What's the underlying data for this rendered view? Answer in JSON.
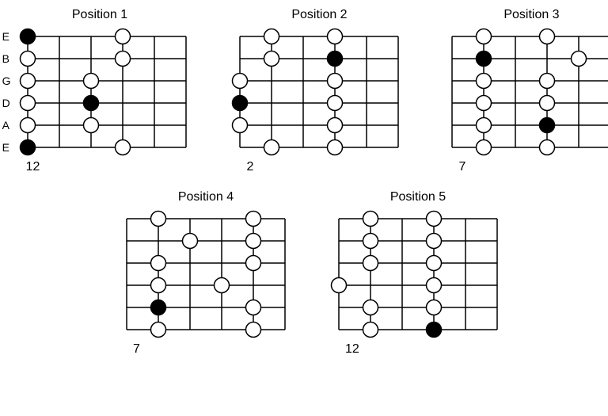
{
  "colors": {
    "bg": "#ffffff",
    "line": "#000000",
    "note_open_fill": "#ffffff",
    "note_open_stroke": "#000000",
    "note_filled": "#000000"
  },
  "geometry": {
    "frets": 5,
    "strings": 6,
    "fret_width": 40,
    "string_spacing": 28,
    "note_radius": 9.5,
    "line_width": 1.5,
    "svg_pad_x": 14,
    "svg_pad_y": 12
  },
  "string_labels": [
    "E",
    "B",
    "G",
    "D",
    "A",
    "E"
  ],
  "diagrams": [
    {
      "title": "Position 1",
      "show_string_labels": true,
      "bottom_label": "12",
      "notes": [
        {
          "string": 0,
          "fret": 0,
          "filled": true
        },
        {
          "string": 0,
          "fret": 3,
          "filled": false
        },
        {
          "string": 1,
          "fret": 0,
          "filled": false
        },
        {
          "string": 1,
          "fret": 3,
          "filled": false
        },
        {
          "string": 2,
          "fret": 0,
          "filled": false
        },
        {
          "string": 2,
          "fret": 2,
          "filled": false
        },
        {
          "string": 3,
          "fret": 0,
          "filled": false
        },
        {
          "string": 3,
          "fret": 2,
          "filled": true
        },
        {
          "string": 4,
          "fret": 0,
          "filled": false
        },
        {
          "string": 4,
          "fret": 2,
          "filled": false
        },
        {
          "string": 5,
          "fret": 0,
          "filled": true
        },
        {
          "string": 5,
          "fret": 3,
          "filled": false
        }
      ]
    },
    {
      "title": "Position 2",
      "show_string_labels": false,
      "bottom_label": "2",
      "notes": [
        {
          "string": 0,
          "fret": 1,
          "filled": false
        },
        {
          "string": 0,
          "fret": 3,
          "filled": false
        },
        {
          "string": 1,
          "fret": 1,
          "filled": false
        },
        {
          "string": 1,
          "fret": 3,
          "filled": true
        },
        {
          "string": 2,
          "fret": 0,
          "filled": false
        },
        {
          "string": 2,
          "fret": 3,
          "filled": false
        },
        {
          "string": 3,
          "fret": 0,
          "filled": true
        },
        {
          "string": 3,
          "fret": 3,
          "filled": false
        },
        {
          "string": 4,
          "fret": 0,
          "filled": false
        },
        {
          "string": 4,
          "fret": 3,
          "filled": false
        },
        {
          "string": 5,
          "fret": 1,
          "filled": false
        },
        {
          "string": 5,
          "fret": 3,
          "filled": false
        }
      ]
    },
    {
      "title": "Position 3",
      "show_string_labels": false,
      "bottom_label": "7",
      "notes": [
        {
          "string": 0,
          "fret": 1,
          "filled": false
        },
        {
          "string": 0,
          "fret": 3,
          "filled": false
        },
        {
          "string": 1,
          "fret": 1,
          "filled": true
        },
        {
          "string": 1,
          "fret": 4,
          "filled": false
        },
        {
          "string": 2,
          "fret": 1,
          "filled": false
        },
        {
          "string": 2,
          "fret": 3,
          "filled": false
        },
        {
          "string": 3,
          "fret": 1,
          "filled": false
        },
        {
          "string": 3,
          "fret": 3,
          "filled": false
        },
        {
          "string": 4,
          "fret": 1,
          "filled": false
        },
        {
          "string": 4,
          "fret": 3,
          "filled": true
        },
        {
          "string": 5,
          "fret": 1,
          "filled": false
        },
        {
          "string": 5,
          "fret": 3,
          "filled": false
        }
      ]
    },
    {
      "title": "Position 4",
      "show_string_labels": false,
      "bottom_label": "7",
      "notes": [
        {
          "string": 0,
          "fret": 1,
          "filled": false
        },
        {
          "string": 0,
          "fret": 4,
          "filled": false
        },
        {
          "string": 1,
          "fret": 2,
          "filled": false
        },
        {
          "string": 1,
          "fret": 4,
          "filled": false
        },
        {
          "string": 2,
          "fret": 1,
          "filled": false
        },
        {
          "string": 2,
          "fret": 4,
          "filled": false
        },
        {
          "string": 3,
          "fret": 1,
          "filled": false
        },
        {
          "string": 3,
          "fret": 3,
          "filled": false
        },
        {
          "string": 4,
          "fret": 1,
          "filled": true
        },
        {
          "string": 4,
          "fret": 4,
          "filled": false
        },
        {
          "string": 5,
          "fret": 1,
          "filled": false
        },
        {
          "string": 5,
          "fret": 4,
          "filled": false
        }
      ]
    },
    {
      "title": "Position 5",
      "show_string_labels": false,
      "bottom_label": "12",
      "notes": [
        {
          "string": 0,
          "fret": 1,
          "filled": false
        },
        {
          "string": 0,
          "fret": 3,
          "filled": false
        },
        {
          "string": 1,
          "fret": 1,
          "filled": false
        },
        {
          "string": 1,
          "fret": 3,
          "filled": false
        },
        {
          "string": 2,
          "fret": 1,
          "filled": false
        },
        {
          "string": 2,
          "fret": 3,
          "filled": false
        },
        {
          "string": 3,
          "fret": 0,
          "filled": false
        },
        {
          "string": 3,
          "fret": 3,
          "filled": false
        },
        {
          "string": 4,
          "fret": 1,
          "filled": false
        },
        {
          "string": 4,
          "fret": 3,
          "filled": false
        },
        {
          "string": 5,
          "fret": 1,
          "filled": false
        },
        {
          "string": 5,
          "fret": 3,
          "filled": true
        }
      ]
    }
  ],
  "layout": {
    "rows": [
      [
        0,
        1,
        2
      ],
      [
        3,
        4
      ]
    ]
  }
}
